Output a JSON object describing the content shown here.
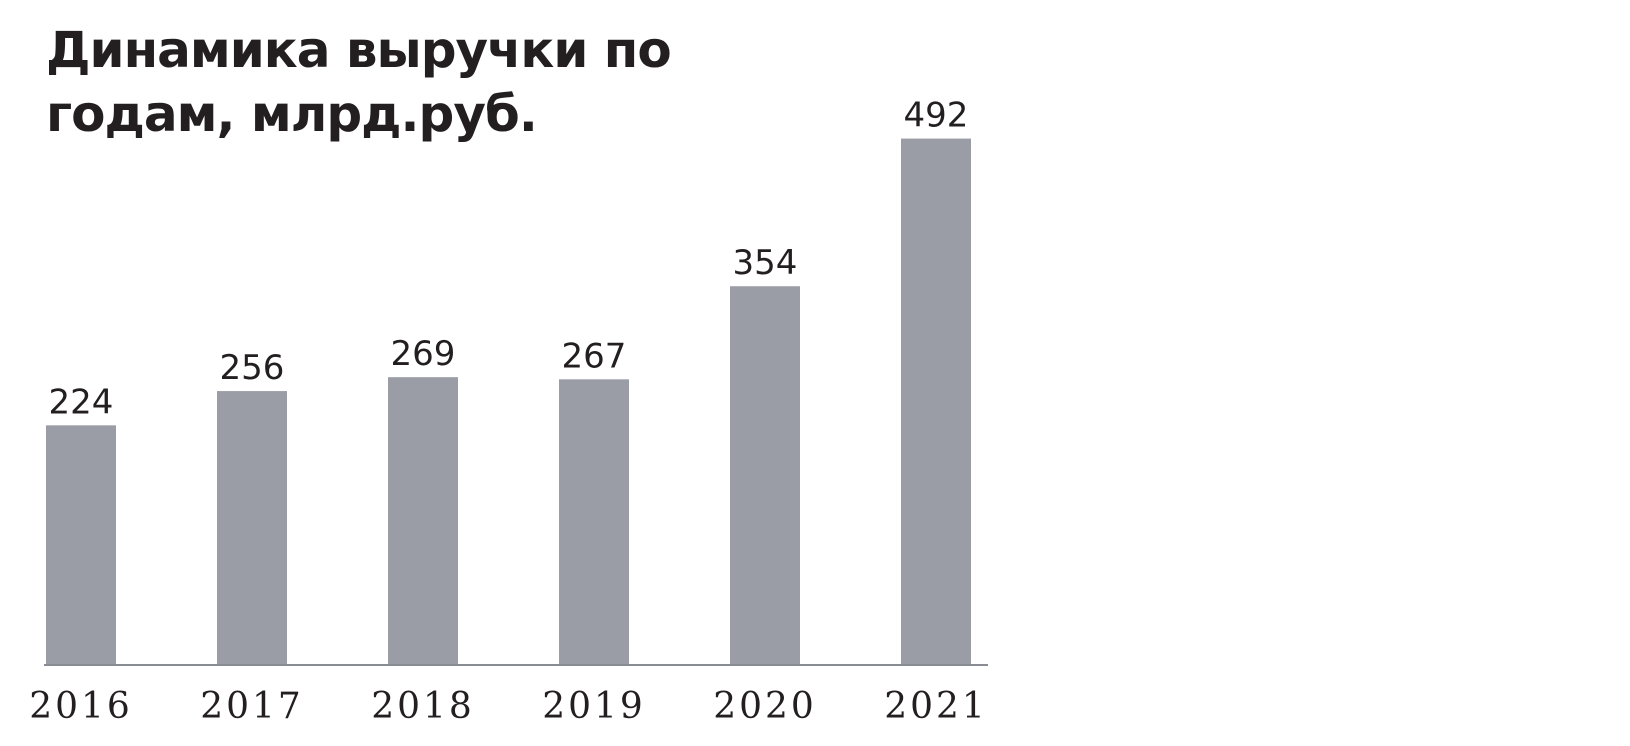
{
  "chart_data": {
    "type": "bar",
    "title": "Динамика выручки по годам, млрд.руб.",
    "categories": [
      "2016",
      "2017",
      "2018",
      "2019",
      "2020",
      "2021"
    ],
    "values": [
      224,
      256,
      269,
      267,
      354,
      492
    ],
    "color": "#9b9da6",
    "ylim": [
      0,
      500
    ]
  }
}
